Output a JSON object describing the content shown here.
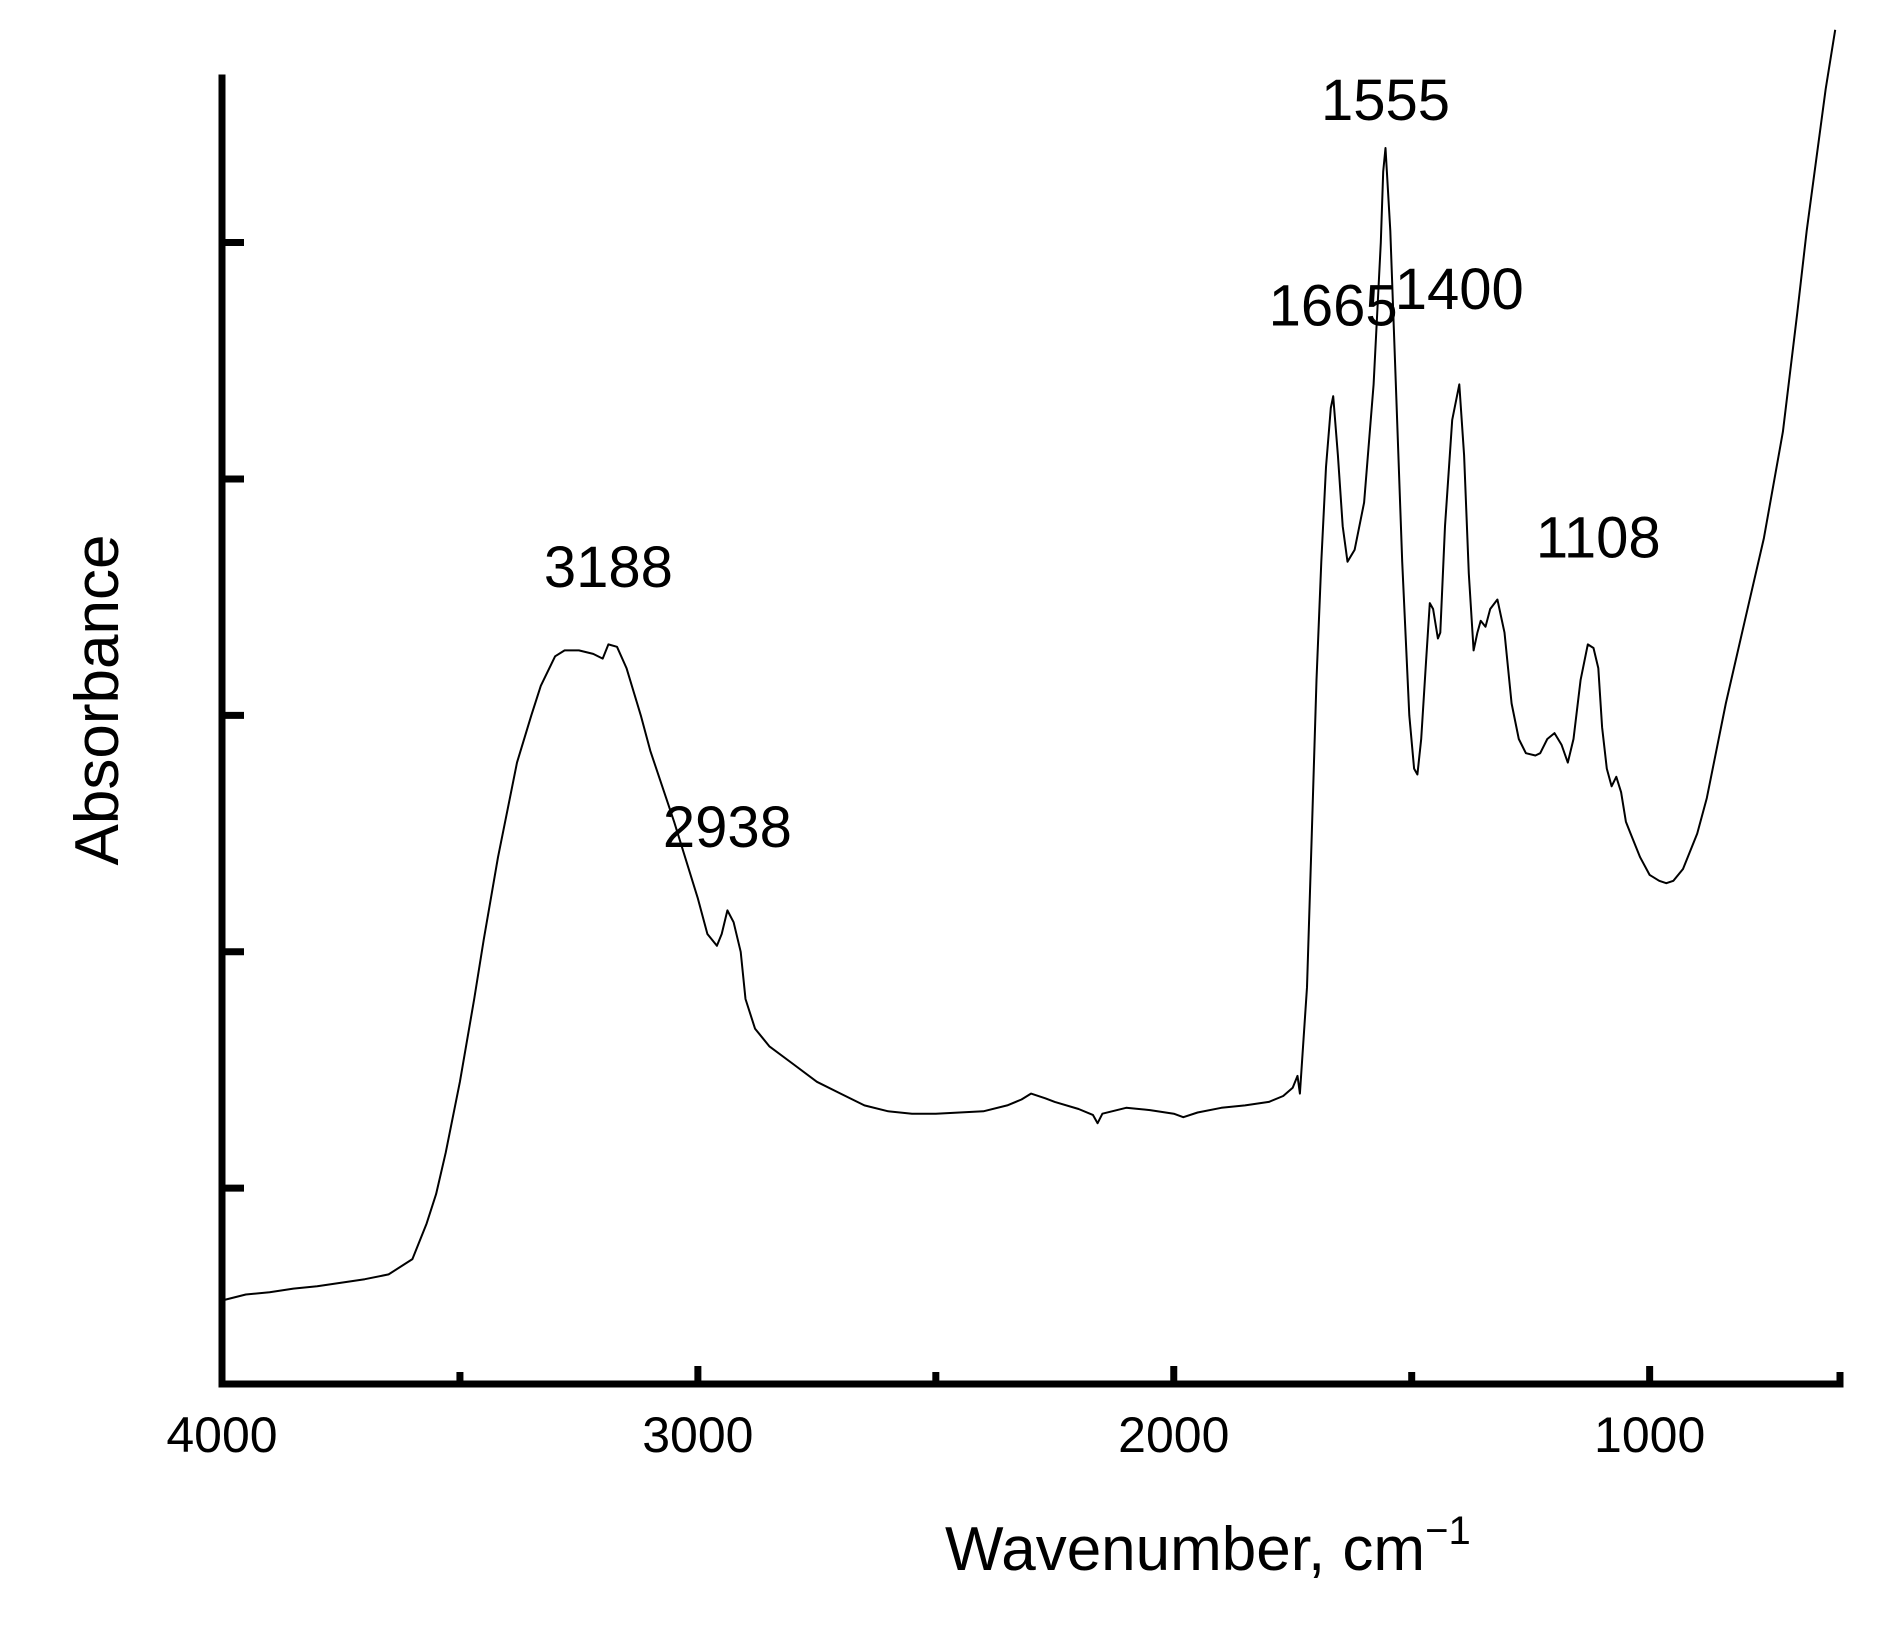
{
  "chart_data": {
    "type": "line",
    "xlabel": "Wavenumber, cm",
    "xlabel_superscript": "−1",
    "ylabel": "Absorbance",
    "xlim": [
      4000,
      600
    ],
    "x_reversed": true,
    "ylim": [
      0,
      1.0
    ],
    "y_tick_labels_shown": false,
    "grid": false,
    "x_major_ticks": [
      4000,
      3000,
      2000,
      1000
    ],
    "x_minor_ticks": [
      3500,
      2500,
      1500
    ],
    "y_ticks": [
      0.12,
      0.32,
      0.52,
      0.72,
      0.92
    ],
    "annotations": [
      {
        "text": "3188",
        "x": 3188,
        "y": 0.605
      },
      {
        "text": "2938",
        "x": 2938,
        "y": 0.385
      },
      {
        "text": "1665",
        "x": 1665,
        "y": 0.826
      },
      {
        "text": "1555",
        "x": 1555,
        "y": 1.0
      },
      {
        "text": "1400",
        "x": 1400,
        "y": 0.84
      },
      {
        "text": "1108",
        "x": 1108,
        "y": 0.63
      }
    ],
    "series": [
      {
        "color": "#000000",
        "points": [
          [
            4000,
            0.025
          ],
          [
            3950,
            0.03
          ],
          [
            3900,
            0.032
          ],
          [
            3850,
            0.035
          ],
          [
            3800,
            0.037
          ],
          [
            3750,
            0.04
          ],
          [
            3700,
            0.043
          ],
          [
            3650,
            0.047
          ],
          [
            3600,
            0.06
          ],
          [
            3570,
            0.09
          ],
          [
            3550,
            0.115
          ],
          [
            3530,
            0.15
          ],
          [
            3500,
            0.21
          ],
          [
            3470,
            0.28
          ],
          [
            3450,
            0.33
          ],
          [
            3420,
            0.4
          ],
          [
            3400,
            0.44
          ],
          [
            3380,
            0.48
          ],
          [
            3350,
            0.52
          ],
          [
            3330,
            0.545
          ],
          [
            3300,
            0.57
          ],
          [
            3280,
            0.575
          ],
          [
            3250,
            0.575
          ],
          [
            3220,
            0.572
          ],
          [
            3200,
            0.568
          ],
          [
            3188,
            0.58
          ],
          [
            3170,
            0.578
          ],
          [
            3150,
            0.56
          ],
          [
            3120,
            0.52
          ],
          [
            3100,
            0.49
          ],
          [
            3050,
            0.43
          ],
          [
            3000,
            0.365
          ],
          [
            2980,
            0.335
          ],
          [
            2960,
            0.325
          ],
          [
            2950,
            0.335
          ],
          [
            2938,
            0.355
          ],
          [
            2925,
            0.345
          ],
          [
            2910,
            0.32
          ],
          [
            2900,
            0.28
          ],
          [
            2880,
            0.255
          ],
          [
            2850,
            0.24
          ],
          [
            2800,
            0.225
          ],
          [
            2750,
            0.21
          ],
          [
            2700,
            0.2
          ],
          [
            2650,
            0.19
          ],
          [
            2600,
            0.185
          ],
          [
            2550,
            0.183
          ],
          [
            2500,
            0.183
          ],
          [
            2450,
            0.184
          ],
          [
            2400,
            0.185
          ],
          [
            2350,
            0.19
          ],
          [
            2320,
            0.195
          ],
          [
            2300,
            0.2
          ],
          [
            2270,
            0.196
          ],
          [
            2250,
            0.193
          ],
          [
            2200,
            0.187
          ],
          [
            2170,
            0.182
          ],
          [
            2160,
            0.175
          ],
          [
            2150,
            0.183
          ],
          [
            2100,
            0.188
          ],
          [
            2050,
            0.186
          ],
          [
            2000,
            0.183
          ],
          [
            1980,
            0.18
          ],
          [
            1950,
            0.184
          ],
          [
            1900,
            0.188
          ],
          [
            1850,
            0.19
          ],
          [
            1800,
            0.193
          ],
          [
            1770,
            0.198
          ],
          [
            1750,
            0.205
          ],
          [
            1740,
            0.215
          ],
          [
            1735,
            0.2
          ],
          [
            1720,
            0.29
          ],
          [
            1710,
            0.42
          ],
          [
            1700,
            0.55
          ],
          [
            1690,
            0.65
          ],
          [
            1680,
            0.73
          ],
          [
            1670,
            0.78
          ],
          [
            1665,
            0.79
          ],
          [
            1655,
            0.74
          ],
          [
            1645,
            0.68
          ],
          [
            1635,
            0.65
          ],
          [
            1620,
            0.66
          ],
          [
            1600,
            0.7
          ],
          [
            1580,
            0.8
          ],
          [
            1565,
            0.92
          ],
          [
            1560,
            0.98
          ],
          [
            1555,
            1.0
          ],
          [
            1545,
            0.93
          ],
          [
            1535,
            0.82
          ],
          [
            1520,
            0.65
          ],
          [
            1505,
            0.52
          ],
          [
            1495,
            0.475
          ],
          [
            1488,
            0.47
          ],
          [
            1480,
            0.5
          ],
          [
            1470,
            0.565
          ],
          [
            1462,
            0.615
          ],
          [
            1455,
            0.61
          ],
          [
            1445,
            0.585
          ],
          [
            1440,
            0.59
          ],
          [
            1430,
            0.68
          ],
          [
            1415,
            0.77
          ],
          [
            1400,
            0.8
          ],
          [
            1390,
            0.74
          ],
          [
            1380,
            0.64
          ],
          [
            1370,
            0.575
          ],
          [
            1362,
            0.59
          ],
          [
            1355,
            0.6
          ],
          [
            1345,
            0.595
          ],
          [
            1335,
            0.61
          ],
          [
            1320,
            0.618
          ],
          [
            1305,
            0.59
          ],
          [
            1290,
            0.53
          ],
          [
            1275,
            0.5
          ],
          [
            1260,
            0.488
          ],
          [
            1240,
            0.486
          ],
          [
            1230,
            0.488
          ],
          [
            1215,
            0.5
          ],
          [
            1200,
            0.505
          ],
          [
            1185,
            0.495
          ],
          [
            1172,
            0.48
          ],
          [
            1160,
            0.5
          ],
          [
            1145,
            0.55
          ],
          [
            1130,
            0.58
          ],
          [
            1118,
            0.577
          ],
          [
            1108,
            0.56
          ],
          [
            1100,
            0.51
          ],
          [
            1090,
            0.475
          ],
          [
            1080,
            0.46
          ],
          [
            1070,
            0.468
          ],
          [
            1060,
            0.455
          ],
          [
            1050,
            0.43
          ],
          [
            1040,
            0.42
          ],
          [
            1020,
            0.4
          ],
          [
            1000,
            0.385
          ],
          [
            980,
            0.38
          ],
          [
            965,
            0.378
          ],
          [
            950,
            0.38
          ],
          [
            930,
            0.39
          ],
          [
            900,
            0.42
          ],
          [
            880,
            0.45
          ],
          [
            860,
            0.49
          ],
          [
            840,
            0.53
          ],
          [
            800,
            0.6
          ],
          [
            760,
            0.67
          ],
          [
            720,
            0.76
          ],
          [
            690,
            0.86
          ],
          [
            670,
            0.93
          ],
          [
            650,
            0.99
          ],
          [
            630,
            1.05
          ],
          [
            610,
            1.1
          ]
        ]
      }
    ]
  }
}
